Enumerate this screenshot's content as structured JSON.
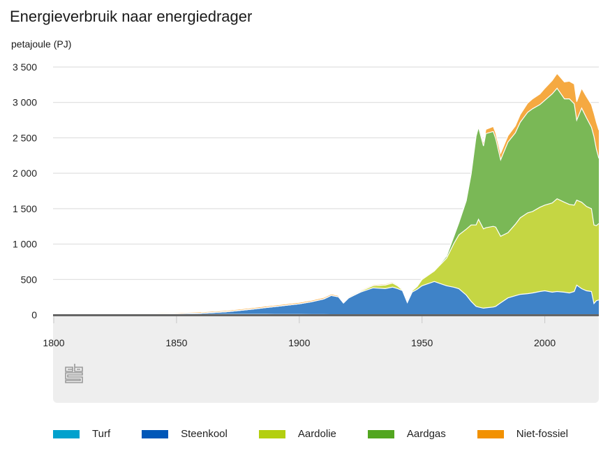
{
  "header": {
    "title": "Energieverbruik naar energiedrager",
    "unit": "petajoule (PJ)"
  },
  "chart_data": {
    "type": "area",
    "stacked": true,
    "title": "Energieverbruik naar energiedrager",
    "ylabel": "petajoule (PJ)",
    "xlabel": "",
    "xlim": [
      1800,
      2022
    ],
    "ylim": [
      0,
      3500
    ],
    "x_ticks": [
      "1800",
      "1850",
      "1900",
      "1950",
      "2000"
    ],
    "y_ticks": [
      "0",
      "500",
      "1 000",
      "1 500",
      "2 000",
      "2 500",
      "3 000",
      "3 500"
    ],
    "grid": true,
    "legend_position": "bottom",
    "x": [
      1800,
      1820,
      1840,
      1850,
      1860,
      1870,
      1880,
      1890,
      1900,
      1905,
      1910,
      1913,
      1916,
      1918,
      1920,
      1925,
      1930,
      1935,
      1938,
      1940,
      1942,
      1944,
      1946,
      1948,
      1950,
      1955,
      1960,
      1963,
      1965,
      1968,
      1970,
      1972,
      1973,
      1975,
      1976,
      1979,
      1980,
      1982,
      1985,
      1988,
      1990,
      1993,
      1995,
      1998,
      2000,
      2003,
      2005,
      2008,
      2010,
      2012,
      2013,
      2015,
      2017,
      2019,
      2020,
      2021,
      2022
    ],
    "series": [
      {
        "name": "Turf",
        "color": "#00a1cd",
        "values": [
          3,
          4,
          5,
          6,
          7,
          8,
          8,
          7,
          6,
          5,
          5,
          4,
          4,
          3,
          3,
          2,
          2,
          1,
          1,
          2,
          3,
          4,
          2,
          1,
          1,
          1,
          1,
          0,
          0,
          0,
          0,
          0,
          0,
          0,
          0,
          0,
          0,
          0,
          0,
          0,
          0,
          0,
          0,
          0,
          0,
          0,
          0,
          0,
          0,
          0,
          0,
          0,
          0,
          0,
          0,
          0,
          0
        ]
      },
      {
        "name": "Steenkool",
        "color": "#3f83c8",
        "values": [
          2,
          4,
          8,
          12,
          18,
          35,
          70,
          110,
          150,
          180,
          220,
          270,
          250,
          165,
          235,
          320,
          380,
          370,
          390,
          370,
          340,
          170,
          320,
          360,
          410,
          470,
          410,
          390,
          370,
          280,
          190,
          120,
          110,
          95,
          100,
          110,
          120,
          170,
          240,
          270,
          290,
          300,
          310,
          330,
          340,
          320,
          330,
          320,
          310,
          330,
          420,
          370,
          340,
          330,
          160,
          200,
          210
        ]
      },
      {
        "name": "Aardolie",
        "color": "#c5d643",
        "values": [
          0,
          0,
          0,
          0,
          0,
          0,
          0,
          0,
          0,
          0,
          0,
          0,
          0,
          0,
          0,
          15,
          30,
          50,
          60,
          40,
          10,
          5,
          20,
          40,
          90,
          150,
          390,
          620,
          760,
          930,
          1080,
          1150,
          1240,
          1120,
          1130,
          1140,
          1120,
          940,
          920,
          1010,
          1080,
          1140,
          1150,
          1190,
          1210,
          1260,
          1310,
          1270,
          1250,
          1220,
          1200,
          1220,
          1190,
          1170,
          1110,
          1060,
          1080
        ]
      },
      {
        "name": "Aardgas",
        "color": "#7ab856",
        "values": [
          0,
          0,
          0,
          0,
          0,
          0,
          0,
          0,
          0,
          0,
          0,
          0,
          0,
          0,
          0,
          0,
          0,
          0,
          0,
          0,
          0,
          0,
          0,
          0,
          0,
          0,
          30,
          100,
          170,
          400,
          720,
          1250,
          1300,
          1170,
          1330,
          1340,
          1250,
          1080,
          1280,
          1290,
          1350,
          1420,
          1450,
          1450,
          1480,
          1540,
          1560,
          1460,
          1490,
          1430,
          1130,
          1330,
          1250,
          1150,
          1250,
          1080,
          920
        ]
      },
      {
        "name": "Niet-fossiel",
        "color": "#f5a941",
        "values": [
          5,
          8,
          12,
          14,
          16,
          18,
          20,
          20,
          20,
          20,
          20,
          20,
          18,
          16,
          15,
          15,
          15,
          15,
          15,
          15,
          15,
          15,
          15,
          15,
          15,
          15,
          15,
          15,
          15,
          15,
          20,
          30,
          40,
          50,
          60,
          70,
          80,
          90,
          90,
          100,
          110,
          130,
          140,
          150,
          170,
          190,
          210,
          240,
          250,
          280,
          260,
          280,
          300,
          320,
          330,
          380,
          400
        ]
      }
    ]
  },
  "legend": [
    {
      "label": "Turf",
      "color": "#00a1cd"
    },
    {
      "label": "Steenkool",
      "color": "#0057b8"
    },
    {
      "label": "Aardolie",
      "color": "#b3cf0f"
    },
    {
      "label": "Aardgas",
      "color": "#52a620"
    },
    {
      "label": "Niet-fossiel",
      "color": "#f29100"
    }
  ],
  "logo": {
    "text": "cbs"
  }
}
